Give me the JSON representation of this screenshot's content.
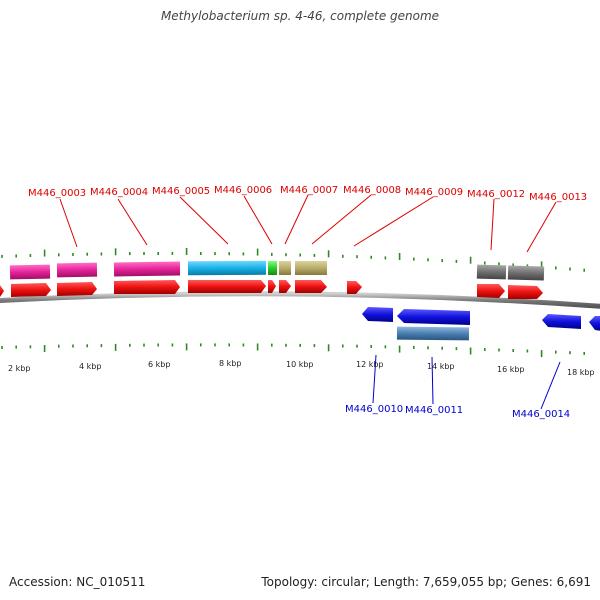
{
  "title": "Methylobacterium sp. 4-46, complete genome",
  "footer": {
    "accession": "Accession: NC_010511",
    "summary": "Topology: circular; Length: 7,659,055 bp; Genes: 6,691"
  },
  "colors": {
    "label_top": "#dd0000",
    "label_bottom": "#0000cc",
    "cds_forward": "#ee1111",
    "cds_reverse": "#1111dd",
    "tick": "#2e8b22",
    "backbone": "#888888"
  },
  "scale": {
    "unit": "kbp",
    "labels": [
      "2 kbp",
      "4 kbp",
      "6 kbp",
      "8 kbp",
      "10 kbp",
      "12 kbp",
      "14 kbp",
      "16 kbp",
      "18 kbp"
    ]
  },
  "top_labels": [
    "M446_0003",
    "M446_0004",
    "M446_0005",
    "M446_0006",
    "M446_0007",
    "M446_0008",
    "M446_0009",
    "M446_0012",
    "M446_0013"
  ],
  "bottom_labels": [
    "M446_0010",
    "M446_0011",
    "M446_0014"
  ],
  "tracks": {
    "forward_cds": [
      "cds-a",
      "cds-b",
      "cds-0003",
      "cds-0004",
      "cds-0005",
      "cds-0006",
      "cds-0007",
      "cds-0008",
      "cds-0009",
      "cds-0012",
      "cds-0013"
    ],
    "reverse_cds": [
      "cds-0010",
      "cds-0011",
      "cds-0014",
      "cds-edge"
    ],
    "features_top": [
      {
        "id": "feat-a",
        "color": "#e6239a"
      },
      {
        "id": "feat-0003",
        "color": "#e6239a"
      },
      {
        "id": "feat-0004",
        "color": "#e6239a"
      },
      {
        "id": "feat-0005",
        "color": "#1ab2e6"
      },
      {
        "id": "feat-0006",
        "color": "#2ecc2e"
      },
      {
        "id": "feat-0007",
        "color": "#b8ad6a"
      },
      {
        "id": "feat-0008",
        "color": "#b8ad6a"
      },
      {
        "id": "feat-0012",
        "color": "#707070"
      },
      {
        "id": "feat-0013",
        "color": "#707070"
      }
    ],
    "features_bottom": [
      {
        "id": "feat-0011",
        "color": "#4a7fb0"
      }
    ]
  }
}
